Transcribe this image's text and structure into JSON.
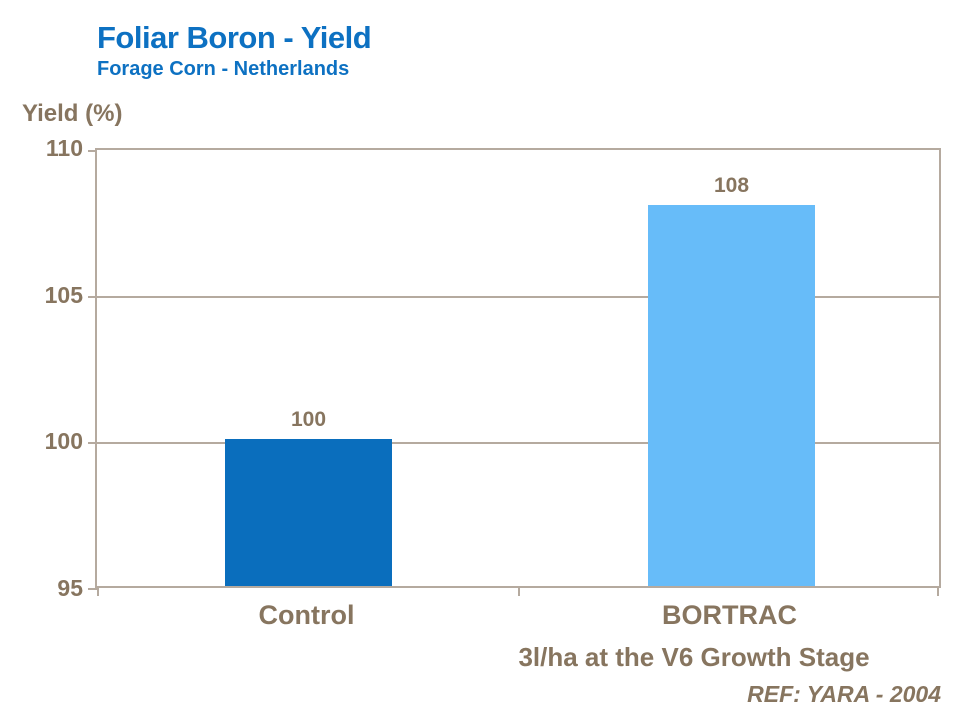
{
  "header": {
    "title": "Foliar Boron - Yield",
    "subtitle": "Forage Corn - Netherlands"
  },
  "y_axis_title": "Yield (%)",
  "chart_data": {
    "type": "bar",
    "categories": [
      "Control",
      "BORTRAC"
    ],
    "values": [
      100,
      108
    ],
    "value_labels": [
      "100",
      "108"
    ],
    "title": "Foliar Boron - Yield",
    "subtitle": "Forage Corn - Netherlands",
    "xlabel": "",
    "ylabel": "Yield (%)",
    "ylim": [
      95,
      110
    ],
    "yticks": [
      110,
      105,
      100,
      95
    ],
    "grid": "horizontal",
    "legend": "none",
    "bar_colors": [
      "#0a6ebd",
      "#67bcf9"
    ]
  },
  "footnotes": {
    "treatment_note": "3l/ha at the V6 Growth Stage",
    "reference": "REF: YARA - 2004"
  },
  "colors": {
    "title_blue": "#0d71c2",
    "text_brown": "#87755f",
    "line_taupe": "#b5aa9f",
    "bar_dark_blue": "#0a6ebd",
    "bar_light_blue": "#67bcf9"
  }
}
